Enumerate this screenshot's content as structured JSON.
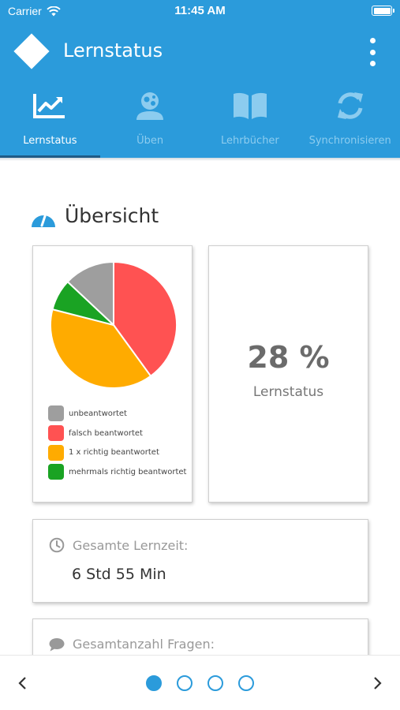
{
  "status_bar": {
    "carrier": "Carrier",
    "time": "11:45 AM",
    "battery_level": 1.0
  },
  "app_bar": {
    "title": "Lernstatus",
    "logo_icon": "diamond-logo",
    "menu_icon": "more-vert-icon"
  },
  "tabs": [
    {
      "label": "Lernstatus",
      "icon": "chart-icon",
      "active": true
    },
    {
      "label": "Üben",
      "icon": "practice-user-icon",
      "active": false
    },
    {
      "label": "Lehrbücher",
      "icon": "book-icon",
      "active": false
    },
    {
      "label": "Synchronisieren",
      "icon": "sync-icon",
      "active": false
    }
  ],
  "overview": {
    "title": "Übersicht",
    "icon": "gauge-icon",
    "legend": [
      {
        "label": "unbeantwortet",
        "color": "#9e9e9e"
      },
      {
        "label": "falsch beantwortet",
        "color": "#ff5252"
      },
      {
        "label": "1 x richtig beantwortet",
        "color": "#ffab00"
      },
      {
        "label": "mehrmals richtig beantwortet",
        "color": "#1aa323"
      }
    ],
    "progress_value": "28 %",
    "progress_label": "Lernstatus"
  },
  "chart_data": {
    "type": "pie",
    "labels": [
      "unbeantwortet",
      "falsch beantwortet",
      "1 x richtig beantwortet",
      "mehrmals richtig beantwortet"
    ],
    "values": [
      13,
      40,
      39,
      8
    ],
    "colors": [
      "#9e9e9e",
      "#ff5252",
      "#ffab00",
      "#1aa323"
    ]
  },
  "stats": [
    {
      "label": "Gesamte Lernzeit:",
      "value": "6 Std 55 Min",
      "icon": "clock-icon"
    },
    {
      "label": "Gesamtanzahl Fragen:",
      "value": "",
      "icon": "comment-icon"
    }
  ],
  "pager": {
    "pages": 4,
    "current_page": 1,
    "prev_icon": "chevron-left-icon",
    "next_icon": "chevron-right-icon"
  }
}
